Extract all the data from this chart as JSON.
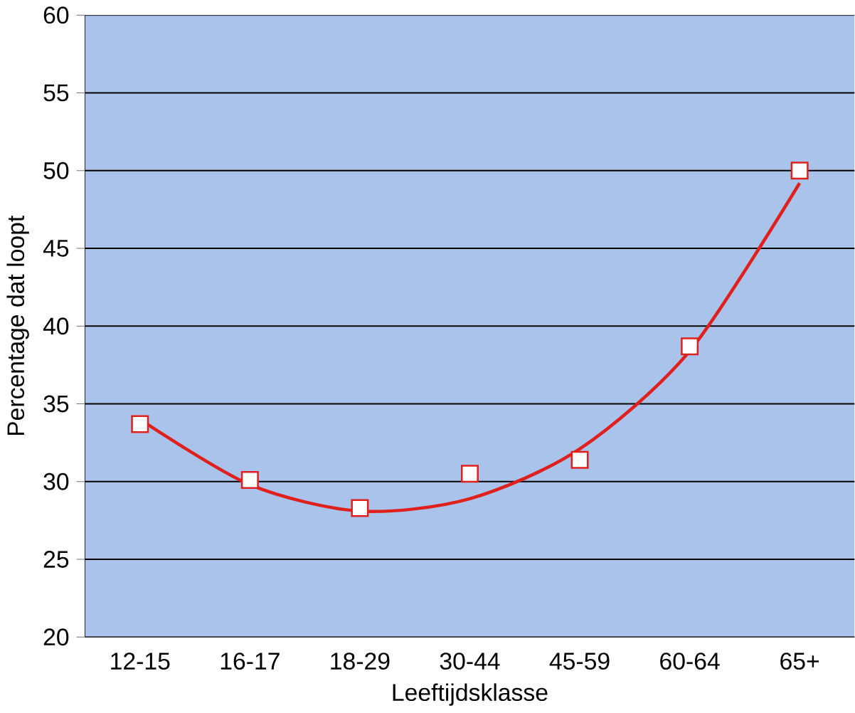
{
  "chart_data": {
    "type": "scatter",
    "xlabel": "Leeftijdsklasse",
    "ylabel": "Percentage dat loopt",
    "categories": [
      "12-15",
      "16-17",
      "18-29",
      "30-44",
      "45-59",
      "60-64",
      "65+"
    ],
    "ylim": [
      20,
      60
    ],
    "yticks": [
      20,
      25,
      30,
      35,
      40,
      45,
      50,
      55,
      60
    ],
    "grid": "y",
    "marker": "square",
    "series": [
      {
        "color": "#e0201c",
        "values": [
          33.7,
          30.1,
          28.3,
          30.5,
          31.4,
          38.7,
          50.0
        ]
      },
      {
        "type": "line",
        "marker": "none",
        "color": "#e0201c",
        "values": [
          34.0,
          29.8,
          28.1,
          28.9,
          32.1,
          38.4,
          49.2
        ]
      }
    ]
  }
}
